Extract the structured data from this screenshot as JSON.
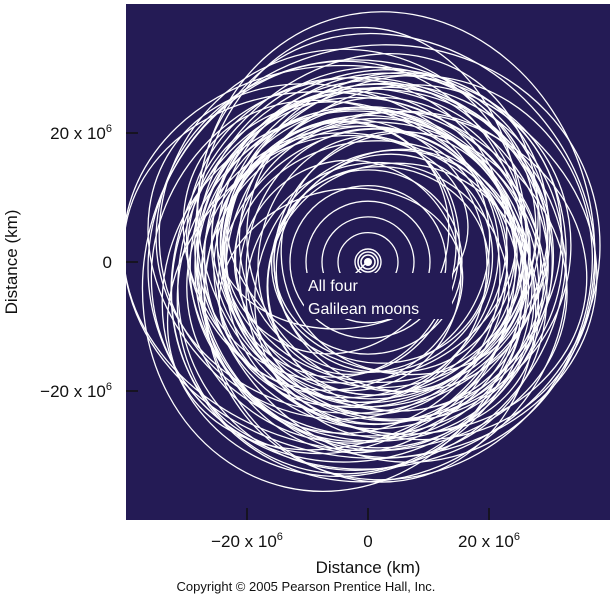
{
  "axes": {
    "x_label": "Distance (km)",
    "y_label": "Distance (km)",
    "x_ticks": [
      {
        "base": "−20 x 10",
        "exp": "6"
      },
      {
        "base": "0",
        "exp": ""
      },
      {
        "base": "20 x 10",
        "exp": "6"
      }
    ],
    "y_ticks": [
      {
        "base": "20 x 10",
        "exp": "6"
      },
      {
        "base": "0",
        "exp": ""
      },
      {
        "base": "−20 x 10",
        "exp": "6"
      }
    ]
  },
  "annotation": {
    "line1": "All four",
    "line2": "Galilean moons"
  },
  "copyright": "Copyright © 2005 Pearson Prentice Hall, Inc.",
  "colors": {
    "plot_background": "#241b55",
    "orbit": "#ffffff"
  }
}
